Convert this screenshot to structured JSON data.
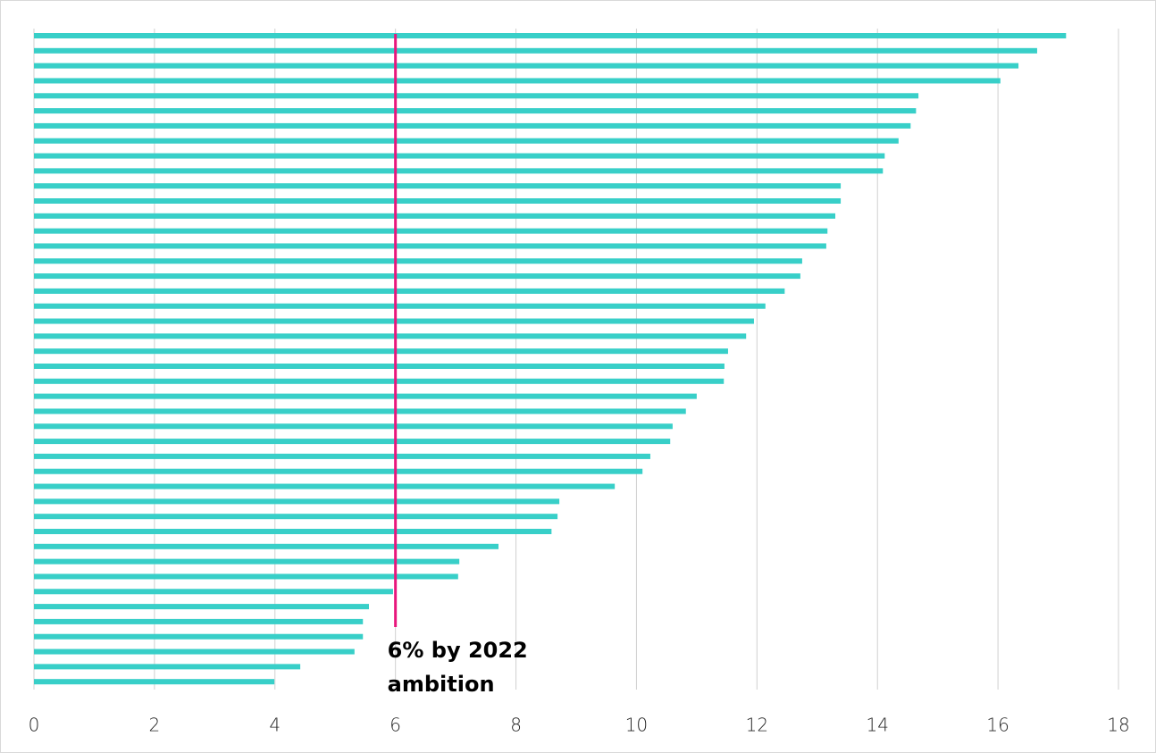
{
  "chart_data": {
    "type": "bar",
    "orientation": "horizontal",
    "values": [
      17.13,
      16.65,
      16.34,
      16.04,
      14.68,
      14.64,
      14.55,
      14.35,
      14.12,
      14.09,
      13.39,
      13.39,
      13.3,
      13.17,
      13.15,
      12.75,
      12.72,
      12.46,
      12.14,
      11.95,
      11.82,
      11.52,
      11.46,
      11.45,
      11.0,
      10.82,
      10.6,
      10.56,
      10.23,
      10.1,
      9.64,
      8.72,
      8.69,
      8.59,
      7.71,
      7.06,
      7.04,
      5.96,
      5.56,
      5.46,
      5.46,
      5.32,
      4.42,
      3.99
    ],
    "color": "#38cfc8",
    "xlim": [
      0,
      18
    ],
    "xticks": [
      0,
      2,
      4,
      6,
      8,
      10,
      12,
      14,
      16,
      18
    ],
    "grid": true,
    "reference_line": {
      "value": 6,
      "color": "#e8177d",
      "label": [
        "6% by 2022",
        "ambition"
      ]
    }
  }
}
